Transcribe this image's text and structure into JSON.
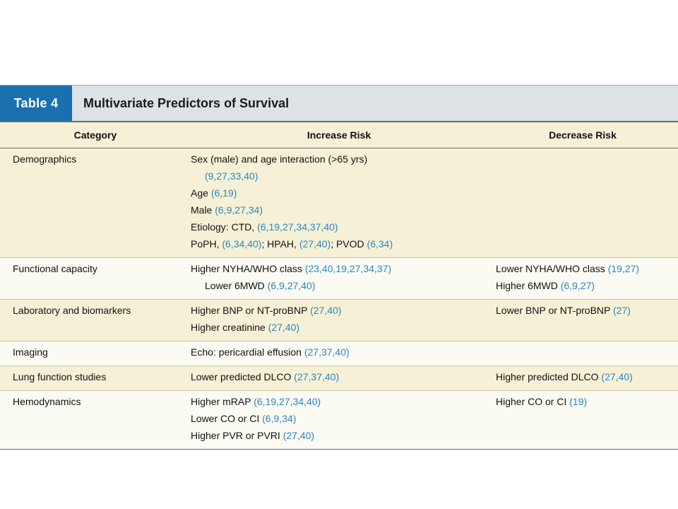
{
  "table": {
    "label": "Table 4",
    "title": "Multivariate Predictors of Survival",
    "headers": {
      "category": "Category",
      "increase": "Increase Risk",
      "decrease": "Decrease Risk"
    },
    "rows": [
      {
        "category": "Demographics",
        "increase": [
          {
            "text": "Sex (male) and age interaction (>65 yrs)",
            "ref": ""
          },
          {
            "text": "",
            "ref": "(9,27,33,40)",
            "indent": true
          },
          {
            "text": "Age ",
            "ref": "(6,19)"
          },
          {
            "text": "Male ",
            "ref": "(6,9,27,34)"
          },
          {
            "text": "Etiology: CTD, ",
            "ref": "(6,19,27,34,37,40)"
          },
          {
            "text": "PoPH, ",
            "ref": "(6,34,40)",
            "text2": "; HPAH, ",
            "ref2": "(27,40)",
            "text3": "; PVOD ",
            "ref3": "(6,34)"
          }
        ],
        "decrease": []
      },
      {
        "category": "Functional capacity",
        "increase": [
          {
            "text": "Higher NYHA/WHO class ",
            "ref": "(23,40,19,27,34,37)"
          },
          {
            "text": "Lower 6MWD ",
            "ref": "(6,9,27,40)",
            "indent": true
          }
        ],
        "decrease": [
          {
            "text": "Lower NYHA/WHO class ",
            "ref": "(19,27)"
          },
          {
            "text": "Higher 6MWD ",
            "ref": "(6,9,27)"
          }
        ]
      },
      {
        "category": "Laboratory and biomarkers",
        "increase": [
          {
            "text": "Higher BNP or NT-proBNP ",
            "ref": "(27,40)"
          },
          {
            "text": "Higher creatinine ",
            "ref": "(27,40)"
          }
        ],
        "decrease": [
          {
            "text": "Lower BNP or NT-proBNP ",
            "ref": "(27)"
          }
        ]
      },
      {
        "category": "Imaging",
        "increase": [
          {
            "text": "Echo: pericardial effusion ",
            "ref": "(27,37,40)"
          }
        ],
        "decrease": []
      },
      {
        "category": "Lung function studies",
        "increase": [
          {
            "text": "Lower predicted DLCO ",
            "ref": "(27,37,40)"
          }
        ],
        "decrease": [
          {
            "text": "Higher predicted DLCO ",
            "ref": "(27,40)"
          }
        ]
      },
      {
        "category": "Hemodynamics",
        "increase": [
          {
            "text": "Higher mRAP ",
            "ref": "(6,19,27,34,40)"
          },
          {
            "text": "Lower CO or CI ",
            "ref": "(6,9,34)"
          },
          {
            "text": "Higher PVR or PVRI ",
            "ref": "(27,40)"
          }
        ],
        "decrease": [
          {
            "text": "Higher CO or CI ",
            "ref": "(19)"
          }
        ]
      }
    ],
    "colors": {
      "label_bg": "#1a6fae",
      "reference_text": "#2a86c4",
      "row_shade": "#f6f1d6"
    }
  }
}
